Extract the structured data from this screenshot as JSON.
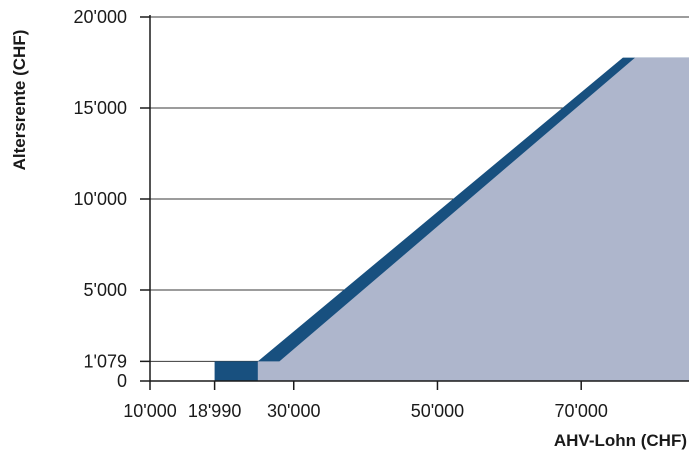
{
  "chart_data": {
    "type": "area",
    "title": "",
    "xlabel": "AHV-Lohn (CHF)",
    "ylabel": "Altersrente (CHF)",
    "xlim": [
      10000,
      85000
    ],
    "ylim": [
      0,
      20000
    ],
    "grid": "horizontal",
    "x_ticks": [
      {
        "value": 10000,
        "label": "10'000"
      },
      {
        "value": 18990,
        "label": "18'990"
      },
      {
        "value": 30000,
        "label": "30'000"
      },
      {
        "value": 50000,
        "label": "50'000"
      },
      {
        "value": 70000,
        "label": "70'000"
      }
    ],
    "y_ticks": [
      {
        "value": 0,
        "label": "0"
      },
      {
        "value": 1079,
        "label": "1'079"
      },
      {
        "value": 5000,
        "label": "5'000"
      },
      {
        "value": 10000,
        "label": "10'000"
      },
      {
        "value": 15000,
        "label": "15'000"
      },
      {
        "value": 20000,
        "label": "20'000"
      }
    ],
    "series": [
      {
        "color": "#18507f",
        "points": [
          [
            18990,
            0
          ],
          [
            18990,
            1079
          ],
          [
            25000,
            1079
          ],
          [
            75800,
            17770
          ],
          [
            85000,
            17770
          ]
        ]
      },
      {
        "color": "#aeb6cc",
        "points": [
          [
            25000,
            0
          ],
          [
            25000,
            1079
          ],
          [
            28000,
            1079
          ],
          [
            77500,
            17770
          ],
          [
            85000,
            17770
          ]
        ]
      }
    ]
  }
}
